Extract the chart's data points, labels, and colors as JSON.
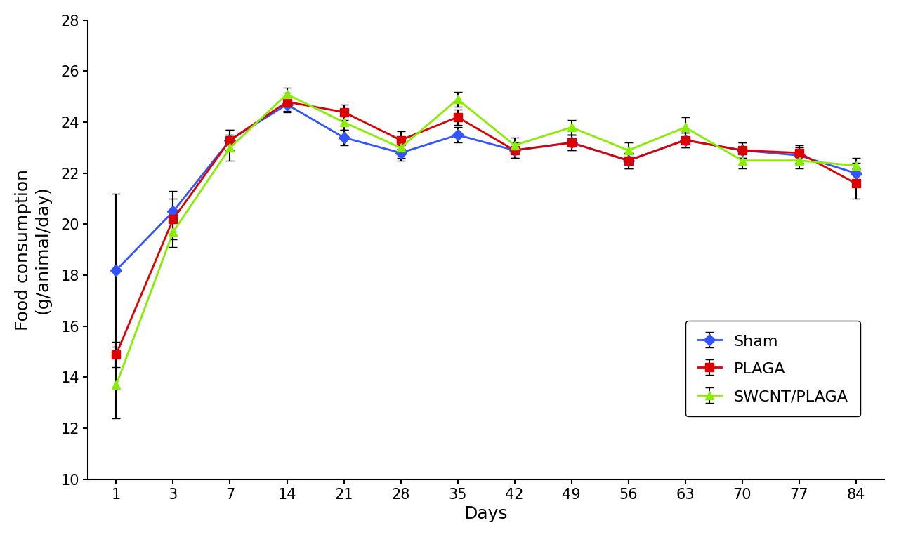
{
  "days": [
    1,
    3,
    7,
    14,
    21,
    28,
    35,
    42,
    49,
    56,
    63,
    70,
    77,
    84
  ],
  "x_positions": [
    0,
    1,
    2,
    3,
    4,
    5,
    6,
    7,
    8,
    9,
    10,
    11,
    12,
    13
  ],
  "sham": {
    "y": [
      18.2,
      20.5,
      23.3,
      24.7,
      23.4,
      22.8,
      23.5,
      22.9,
      23.2,
      22.5,
      23.3,
      22.9,
      22.7,
      22.0
    ],
    "yerr": [
      3.0,
      0.8,
      0.4,
      0.3,
      0.3,
      0.3,
      0.3,
      0.3,
      0.3,
      0.3,
      0.3,
      0.3,
      0.3,
      0.4
    ],
    "color": "#3355ff",
    "marker": "D",
    "label": "Sham"
  },
  "plaga": {
    "y": [
      14.9,
      20.2,
      23.3,
      24.8,
      24.4,
      23.3,
      24.2,
      22.9,
      23.2,
      22.5,
      23.3,
      22.9,
      22.8,
      21.6
    ],
    "yerr": [
      0.5,
      0.8,
      0.4,
      0.35,
      0.3,
      0.35,
      0.3,
      0.3,
      0.3,
      0.3,
      0.3,
      0.3,
      0.3,
      0.6
    ],
    "color": "#dd0000",
    "marker": "s",
    "label": "PLAGA"
  },
  "swcnt": {
    "y": [
      13.7,
      19.7,
      23.0,
      25.1,
      24.0,
      23.0,
      24.9,
      23.1,
      23.8,
      22.9,
      23.8,
      22.5,
      22.5,
      22.3
    ],
    "yerr": [
      1.3,
      0.6,
      0.5,
      0.25,
      0.3,
      0.4,
      0.3,
      0.3,
      0.3,
      0.3,
      0.4,
      0.3,
      0.3,
      0.3
    ],
    "color": "#88ee00",
    "marker": "^",
    "label": "SWCNT/PLAGA"
  },
  "xlabel": "Days",
  "ylabel": "Food consumption\n(g/animal/day)",
  "ylim": [
    10,
    28
  ],
  "yticks": [
    10,
    12,
    14,
    16,
    18,
    20,
    22,
    24,
    26,
    28
  ],
  "background_color": "#ffffff",
  "linewidth": 2.0,
  "markersize": 8,
  "elinewidth": 1.5,
  "capsize": 4
}
